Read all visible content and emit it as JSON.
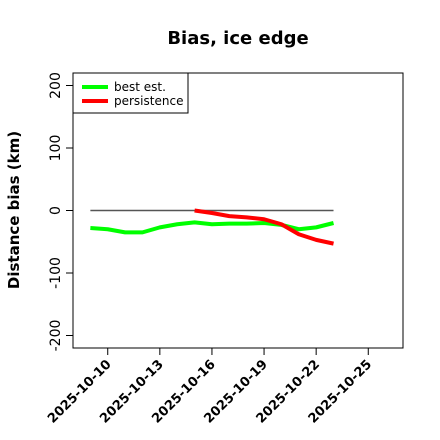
{
  "chart_data": {
    "type": "line",
    "title": "Bias, ice edge",
    "xlabel": "",
    "ylabel": "Distance bias (km)",
    "x_tick_labels": [
      "2025-10-10",
      "2025-10-13",
      "2025-10-16",
      "2025-10-19",
      "2025-10-22",
      "2025-10-25"
    ],
    "x_ticks": [
      "2025-10-10",
      "2025-10-13",
      "2025-10-16",
      "2025-10-19",
      "2025-10-22",
      "2025-10-25"
    ],
    "y_ticks": [
      -200,
      -100,
      0,
      100,
      200
    ],
    "y_tick_labels": [
      "-200",
      "-100",
      "0",
      "100",
      "200"
    ],
    "xlim": [
      "2025-10-08",
      "2025-10-27"
    ],
    "ylim": [
      -220,
      220
    ],
    "reference_line": {
      "y": 0,
      "x_start": "2025-10-09",
      "x_end": "2025-10-23",
      "color": "#555555"
    },
    "legend": {
      "position": "top-left"
    },
    "series": [
      {
        "name": "best est.",
        "color": "#00ff00",
        "points": [
          {
            "x": "2025-10-09",
            "y": -28
          },
          {
            "x": "2025-10-10",
            "y": -30
          },
          {
            "x": "2025-10-11",
            "y": -35
          },
          {
            "x": "2025-10-12",
            "y": -35
          },
          {
            "x": "2025-10-13",
            "y": -27
          },
          {
            "x": "2025-10-14",
            "y": -22
          },
          {
            "x": "2025-10-15",
            "y": -19
          },
          {
            "x": "2025-10-16",
            "y": -22
          },
          {
            "x": "2025-10-17",
            "y": -21
          },
          {
            "x": "2025-10-18",
            "y": -21
          },
          {
            "x": "2025-10-19",
            "y": -20
          },
          {
            "x": "2025-10-20",
            "y": -23
          },
          {
            "x": "2025-10-21",
            "y": -30
          },
          {
            "x": "2025-10-22",
            "y": -27
          },
          {
            "x": "2025-10-23",
            "y": -20
          }
        ]
      },
      {
        "name": "persistence",
        "color": "#ff0000",
        "points": [
          {
            "x": "2025-10-15",
            "y": 0
          },
          {
            "x": "2025-10-16",
            "y": -4
          },
          {
            "x": "2025-10-17",
            "y": -9
          },
          {
            "x": "2025-10-18",
            "y": -11
          },
          {
            "x": "2025-10-19",
            "y": -14
          },
          {
            "x": "2025-10-20",
            "y": -22
          },
          {
            "x": "2025-10-21",
            "y": -38
          },
          {
            "x": "2025-10-22",
            "y": -47
          },
          {
            "x": "2025-10-23",
            "y": -53
          }
        ]
      }
    ]
  }
}
